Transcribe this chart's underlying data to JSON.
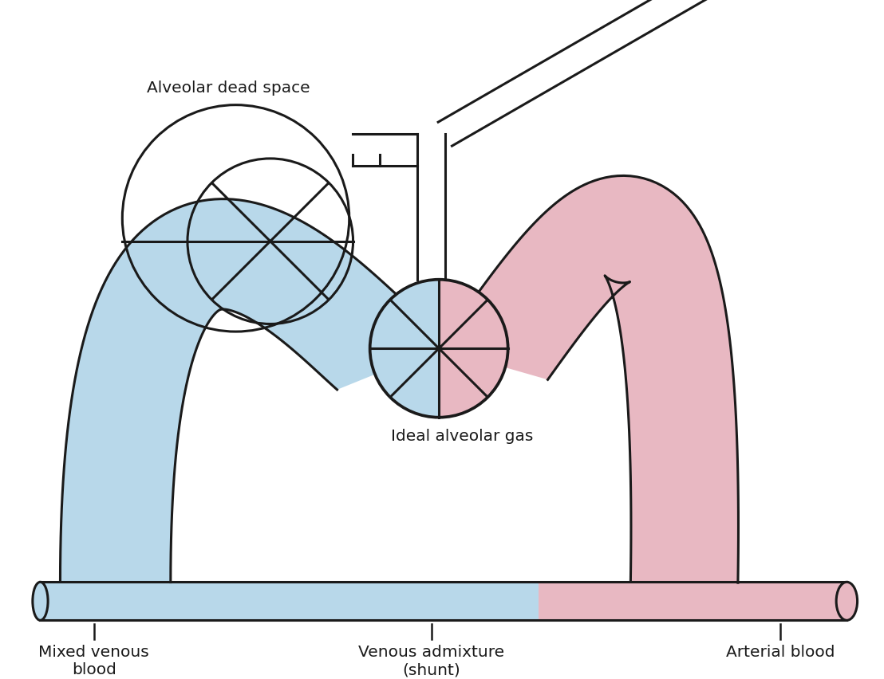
{
  "bg_color": "#ffffff",
  "lc": "#1a1a1a",
  "blue": "#b8d8ea",
  "pink": "#e8b8c2",
  "lw": 2.2,
  "lw_thin": 1.8,
  "labels": {
    "alveolar_dead_space": "Alveolar dead space",
    "ideal_alveolar_gas": "Ideal alveolar gas",
    "mixed_venous": "Mixed venous\nblood",
    "venous_admixture": "Venous admixture\n(shunt)",
    "arterial_blood": "Arterial blood"
  },
  "figsize": [
    11.08,
    8.52
  ],
  "dpi": 100
}
